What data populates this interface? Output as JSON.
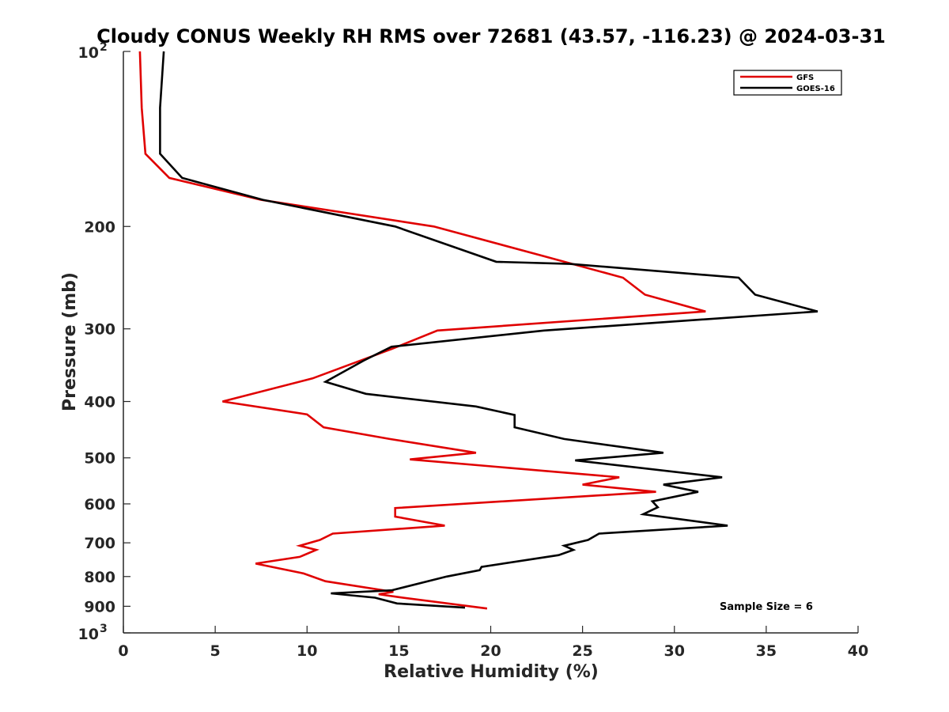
{
  "chart_data": {
    "type": "line",
    "title": "Cloudy CONUS Weekly RH RMS over 72681 (43.57, -116.23) @ 2024-03-31",
    "xlabel": "Relative Humidity (%)",
    "ylabel": "Pressure (mb)",
    "xlim": [
      0,
      40
    ],
    "ylim": [
      100,
      1000
    ],
    "y_scale": "log",
    "y_reversed": true,
    "x_ticks": [
      "0",
      "5",
      "10",
      "15",
      "20",
      "25",
      "30",
      "35",
      "40"
    ],
    "y_ticks": [
      {
        "value": 100,
        "base": "10",
        "sup": "2"
      },
      {
        "value": 200,
        "label": "200"
      },
      {
        "value": 300,
        "label": "300"
      },
      {
        "value": 400,
        "label": "400"
      },
      {
        "value": 500,
        "label": "500"
      },
      {
        "value": 600,
        "label": "600"
      },
      {
        "value": 700,
        "label": "700"
      },
      {
        "value": 800,
        "label": "800"
      },
      {
        "value": 900,
        "label": "900"
      },
      {
        "value": 1000,
        "base": "10",
        "sup": "3"
      }
    ],
    "legend_position": "top-right",
    "grid": false,
    "annotation": "Sample Size = 6",
    "series": [
      {
        "name": "GFS",
        "color": "#e00000",
        "points": [
          [
            0.9,
            100
          ],
          [
            1.0,
            125
          ],
          [
            1.2,
            150
          ],
          [
            2.5,
            165
          ],
          [
            7.5,
            180
          ],
          [
            16.9,
            200
          ],
          [
            22.9,
            225
          ],
          [
            27.2,
            245
          ],
          [
            28.4,
            262
          ],
          [
            31.7,
            280
          ],
          [
            17.1,
            302
          ],
          [
            14.6,
            325
          ],
          [
            10.3,
            365
          ],
          [
            5.4,
            400
          ],
          [
            10.0,
            421
          ],
          [
            10.9,
            443
          ],
          [
            14.5,
            464
          ],
          [
            19.2,
            490
          ],
          [
            15.6,
            503
          ],
          [
            27.0,
            540
          ],
          [
            25.0,
            556
          ],
          [
            29.0,
            572
          ],
          [
            14.8,
            610
          ],
          [
            14.8,
            631
          ],
          [
            17.5,
            654
          ],
          [
            11.4,
            675
          ],
          [
            10.7,
            692
          ],
          [
            9.6,
            708
          ],
          [
            10.5,
            720
          ],
          [
            9.6,
            740
          ],
          [
            7.2,
            760
          ],
          [
            9.8,
            790
          ],
          [
            11.0,
            815
          ],
          [
            14.7,
            850
          ],
          [
            13.9,
            858
          ],
          [
            15.0,
            868
          ],
          [
            19.8,
            908
          ]
        ]
      },
      {
        "name": "GOES-16",
        "color": "#000000",
        "points": [
          [
            2.2,
            100
          ],
          [
            2.0,
            125
          ],
          [
            2.0,
            150
          ],
          [
            3.2,
            165
          ],
          [
            7.6,
            180
          ],
          [
            14.8,
            200
          ],
          [
            20.3,
            230
          ],
          [
            24.3,
            232
          ],
          [
            33.5,
            245
          ],
          [
            34.4,
            262
          ],
          [
            37.8,
            280
          ],
          [
            22.9,
            302
          ],
          [
            14.6,
            322
          ],
          [
            13.1,
            340
          ],
          [
            11.0,
            370
          ],
          [
            13.2,
            388
          ],
          [
            19.2,
            408
          ],
          [
            21.3,
            422
          ],
          [
            21.3,
            443
          ],
          [
            24.0,
            464
          ],
          [
            29.4,
            490
          ],
          [
            24.6,
            505
          ],
          [
            32.6,
            540
          ],
          [
            29.4,
            556
          ],
          [
            31.3,
            572
          ],
          [
            28.8,
            594
          ],
          [
            29.1,
            608
          ],
          [
            28.3,
            625
          ],
          [
            32.9,
            654
          ],
          [
            25.9,
            675
          ],
          [
            25.3,
            692
          ],
          [
            24.0,
            708
          ],
          [
            24.5,
            720
          ],
          [
            23.7,
            735
          ],
          [
            19.5,
            770
          ],
          [
            19.4,
            780
          ],
          [
            17.6,
            800
          ],
          [
            14.6,
            845
          ],
          [
            11.3,
            855
          ],
          [
            13.7,
            870
          ],
          [
            14.9,
            890
          ],
          [
            18.6,
            905
          ]
        ]
      }
    ]
  }
}
